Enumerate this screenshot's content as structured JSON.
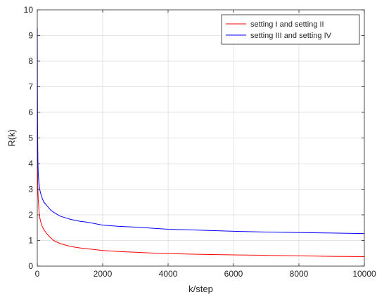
{
  "chart_data": {
    "type": "line",
    "title": "",
    "xlabel": "k/step",
    "ylabel": "R(k)",
    "xlim": [
      0,
      10000
    ],
    "ylim": [
      0,
      10
    ],
    "xticks": [
      0,
      2000,
      4000,
      6000,
      8000,
      10000
    ],
    "yticks": [
      0,
      1,
      2,
      3,
      4,
      5,
      6,
      7,
      8,
      9,
      10
    ],
    "grid": true,
    "legend_position": "top-right",
    "series": [
      {
        "name": "setting I and setting II",
        "color": "#ff0000",
        "x": [
          1,
          5,
          10,
          20,
          30,
          50,
          75,
          100,
          150,
          200,
          300,
          400,
          500,
          700,
          1000,
          1300,
          1500,
          2000,
          2500,
          3000,
          3500,
          4000,
          5000,
          6000,
          7000,
          8000,
          9000,
          10000
        ],
        "y": [
          7.0,
          4.5,
          3.6,
          2.9,
          2.6,
          2.2,
          1.9,
          1.75,
          1.55,
          1.42,
          1.25,
          1.12,
          1.0,
          0.88,
          0.77,
          0.71,
          0.68,
          0.61,
          0.57,
          0.54,
          0.51,
          0.49,
          0.46,
          0.44,
          0.42,
          0.4,
          0.38,
          0.37
        ]
      },
      {
        "name": "setting III and setting IV",
        "color": "#0000ff",
        "x": [
          1,
          5,
          10,
          20,
          30,
          50,
          75,
          100,
          150,
          200,
          300,
          400,
          500,
          700,
          1000,
          1300,
          1500,
          2000,
          2500,
          3000,
          3500,
          4000,
          5000,
          6000,
          7000,
          8000,
          9000,
          10000
        ],
        "y": [
          9.3,
          6.8,
          5.2,
          4.0,
          3.6,
          3.25,
          3.0,
          2.85,
          2.65,
          2.5,
          2.35,
          2.2,
          2.1,
          1.95,
          1.83,
          1.75,
          1.72,
          1.6,
          1.55,
          1.52,
          1.48,
          1.44,
          1.4,
          1.36,
          1.33,
          1.31,
          1.29,
          1.27
        ]
      }
    ]
  }
}
